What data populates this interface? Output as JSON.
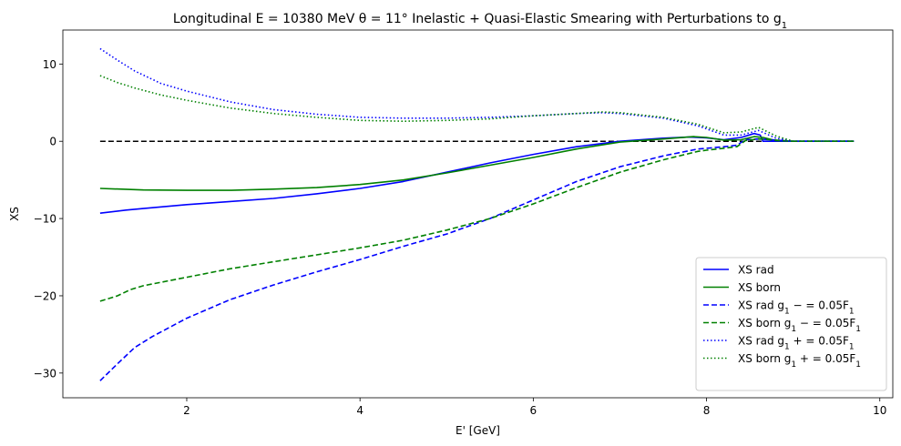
{
  "chart_data": {
    "type": "line",
    "title": "Longitudinal E = 10380 MeV θ = 11° Inelastic + Quasi-Elastic Smearing  with Perturbations to g",
    "title_sub": "1",
    "xlabel": "E' [GeV]",
    "ylabel": "XS",
    "xlim": [
      0.57,
      10.15
    ],
    "ylim": [
      -33.2,
      14.4
    ],
    "xticks": [
      2,
      4,
      6,
      8,
      10
    ],
    "yticks": [
      -30,
      -20,
      -10,
      0,
      10
    ],
    "grid": false,
    "legend_position": "lower-right",
    "reference_line": {
      "y": 0,
      "x_range": [
        1.0,
        9.7
      ],
      "color": "#000000",
      "dash": "dashed"
    },
    "series": [
      {
        "name": "XS rad",
        "color": "#0000ff",
        "dash": "solid",
        "x": [
          1.0,
          1.3,
          1.5,
          2.0,
          2.5,
          3.0,
          3.5,
          4.0,
          4.5,
          5.0,
          5.5,
          6.0,
          6.5,
          7.0,
          7.5,
          7.8,
          8.0,
          8.2,
          8.4,
          8.55,
          8.62,
          8.65,
          8.7,
          9.0,
          9.7
        ],
        "y": [
          -9.3,
          -8.9,
          -8.7,
          -8.2,
          -7.8,
          -7.4,
          -6.8,
          -6.1,
          -5.2,
          -4.0,
          -2.8,
          -1.7,
          -0.7,
          0.0,
          0.4,
          0.55,
          0.45,
          0.2,
          0.5,
          1.0,
          0.8,
          0.0,
          0.0,
          0.0,
          0.0
        ]
      },
      {
        "name": "XS born",
        "color": "#008000",
        "dash": "solid",
        "x": [
          1.0,
          1.5,
          2.0,
          2.5,
          3.0,
          3.5,
          4.0,
          4.5,
          5.0,
          5.5,
          6.0,
          6.5,
          7.0,
          7.5,
          7.85,
          8.0,
          8.2,
          8.4,
          8.55,
          8.65,
          8.8,
          9.0,
          9.7
        ],
        "y": [
          -6.1,
          -6.3,
          -6.35,
          -6.35,
          -6.2,
          -6.0,
          -5.6,
          -5.0,
          -4.1,
          -3.1,
          -2.1,
          -1.0,
          -0.1,
          0.3,
          0.6,
          0.5,
          0.15,
          0.2,
          0.6,
          0.5,
          0.1,
          0.0,
          0.0
        ]
      },
      {
        "name": "XS rad g₁ − = 0.05F₁",
        "color": "#0000ff",
        "dash": "dashed",
        "x": [
          1.0,
          1.2,
          1.4,
          1.6,
          2.0,
          2.5,
          3.0,
          3.5,
          4.0,
          4.5,
          5.0,
          5.5,
          6.0,
          6.5,
          7.0,
          7.5,
          7.9,
          8.0,
          8.2,
          8.35,
          8.45,
          8.6,
          9.0,
          9.7
        ],
        "y": [
          -31.0,
          -28.8,
          -26.7,
          -25.3,
          -22.9,
          -20.5,
          -18.6,
          -16.9,
          -15.3,
          -13.6,
          -12.0,
          -10.0,
          -7.6,
          -5.2,
          -3.3,
          -1.9,
          -1.0,
          -0.9,
          -0.7,
          -0.5,
          0.2,
          0.3,
          0.0,
          0.0
        ]
      },
      {
        "name": "XS born g₁ − = 0.05F₁",
        "color": "#008000",
        "dash": "dashed",
        "x": [
          1.0,
          1.2,
          1.35,
          1.5,
          2.0,
          2.5,
          3.0,
          3.5,
          4.0,
          4.5,
          5.0,
          5.5,
          6.0,
          6.5,
          7.0,
          7.5,
          7.9,
          8.0,
          8.2,
          8.35,
          8.45,
          8.6,
          9.0,
          9.7
        ],
        "y": [
          -20.7,
          -20.0,
          -19.2,
          -18.7,
          -17.6,
          -16.5,
          -15.6,
          -14.7,
          -13.8,
          -12.8,
          -11.5,
          -10.0,
          -8.1,
          -6.0,
          -4.0,
          -2.4,
          -1.3,
          -1.15,
          -0.9,
          -0.7,
          0.1,
          0.3,
          0.0,
          0.0
        ]
      },
      {
        "name": "XS rad g₁ + = 0.05F₁",
        "color": "#0000ff",
        "dash": "dotted",
        "x": [
          1.0,
          1.2,
          1.4,
          1.7,
          2.0,
          2.5,
          3.0,
          3.5,
          4.0,
          4.5,
          5.0,
          5.5,
          6.0,
          6.5,
          6.8,
          7.0,
          7.5,
          7.9,
          8.2,
          8.4,
          8.6,
          8.8,
          9.0,
          9.7
        ],
        "y": [
          12.0,
          10.5,
          9.1,
          7.5,
          6.5,
          5.1,
          4.1,
          3.5,
          3.1,
          3.0,
          3.0,
          3.1,
          3.3,
          3.6,
          3.7,
          3.6,
          3.0,
          2.0,
          0.8,
          0.8,
          1.4,
          0.4,
          0.0,
          0.0
        ]
      },
      {
        "name": "XS born g₁ + = 0.05F₁",
        "color": "#008000",
        "dash": "dotted",
        "x": [
          1.0,
          1.2,
          1.4,
          1.7,
          2.0,
          2.5,
          3.0,
          3.5,
          4.0,
          4.5,
          5.0,
          5.5,
          6.0,
          6.5,
          6.8,
          7.0,
          7.5,
          7.9,
          8.2,
          8.4,
          8.6,
          8.8,
          9.0,
          9.7
        ],
        "y": [
          8.5,
          7.6,
          6.9,
          6.0,
          5.3,
          4.3,
          3.6,
          3.1,
          2.7,
          2.6,
          2.7,
          2.9,
          3.3,
          3.6,
          3.8,
          3.7,
          3.1,
          2.2,
          1.1,
          1.2,
          1.8,
          0.7,
          0.0,
          0.0
        ]
      }
    ],
    "legend_entries": [
      {
        "base": "XS rad",
        "sub": "",
        "suffix": ""
      },
      {
        "base": "XS born",
        "sub": "",
        "suffix": ""
      },
      {
        "base": "XS rad g",
        "sub": "1",
        "suffix": " − = 0.05F",
        "sub2": "1"
      },
      {
        "base": "XS born g",
        "sub": "1",
        "suffix": " − = 0.05F",
        "sub2": "1"
      },
      {
        "base": "XS rad g",
        "sub": "1",
        "suffix": " + = 0.05F",
        "sub2": "1"
      },
      {
        "base": "XS born g",
        "sub": "1",
        "suffix": " + = 0.05F",
        "sub2": "1"
      }
    ]
  }
}
